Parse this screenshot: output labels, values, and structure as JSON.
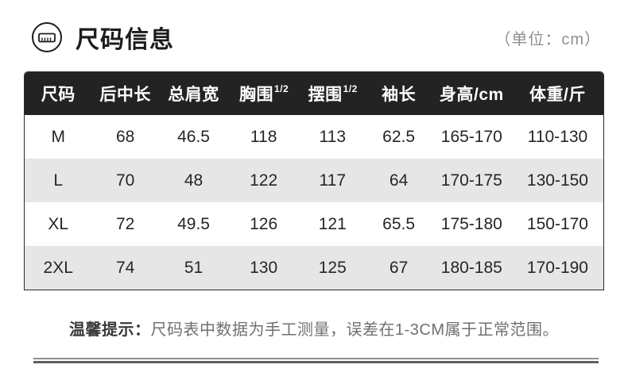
{
  "header": {
    "title": "尺码信息",
    "unit_note": "（单位：cm）"
  },
  "table": {
    "columns": [
      {
        "label": "尺码",
        "sup": ""
      },
      {
        "label": "后中长",
        "sup": ""
      },
      {
        "label": "总肩宽",
        "sup": ""
      },
      {
        "label": "胸围",
        "sup": "1/2"
      },
      {
        "label": "摆围",
        "sup": "1/2"
      },
      {
        "label": "袖长",
        "sup": ""
      },
      {
        "label": "身高/cm",
        "sup": ""
      },
      {
        "label": "体重/斤",
        "sup": ""
      }
    ],
    "rows": [
      {
        "size": "M",
        "values": [
          "68",
          "46.5",
          "118",
          "113",
          "62.5",
          "165-170",
          "110-130"
        ]
      },
      {
        "size": "L",
        "values": [
          "70",
          "48",
          "122",
          "117",
          "64",
          "170-175",
          "130-150"
        ]
      },
      {
        "size": "XL",
        "values": [
          "72",
          "49.5",
          "126",
          "121",
          "65.5",
          "175-180",
          "150-170"
        ]
      },
      {
        "size": "2XL",
        "values": [
          "74",
          "51",
          "130",
          "125",
          "67",
          "180-185",
          "170-190"
        ]
      }
    ]
  },
  "tip": {
    "label": "温馨提示：",
    "text": "尺码表中数据为手工测量，误差在1-3CM属于正常范围。"
  },
  "colors": {
    "header_bg": "#232323",
    "row_alt_bg": "#e6e6e6",
    "title_text": "#1c1c1c",
    "unit_text": "#8f8f8f",
    "tip_text": "#707070"
  }
}
